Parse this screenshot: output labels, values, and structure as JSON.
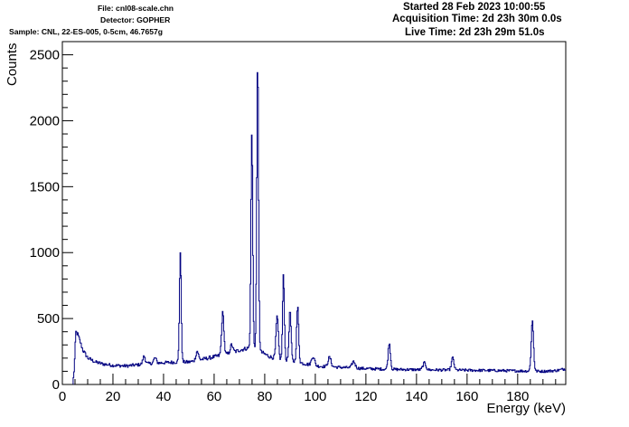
{
  "header": {
    "file": "File: cnl08-scale.chn",
    "detector": "Detector: GOPHER",
    "sample": "Sample: CNL, 22-ES-005, 0-5cm, 46.7657g",
    "started": "Started 28 Feb 2023 10:00:55",
    "acquisition_time": "Acquisition Time: 2d 23h 30m 0.0s",
    "live_time": "Live Time: 2d 23h 29m 51.0s"
  },
  "colors": {
    "line": "#000080",
    "axis": "#000000",
    "background": "#ffffff"
  },
  "chart_data": {
    "type": "line",
    "style": "histogram-step",
    "xlabel": "Energy (keV)",
    "ylabel": "Counts",
    "xlim": [
      0,
      199
    ],
    "ylim": [
      0,
      2600
    ],
    "x_ticks": [
      0,
      20,
      40,
      60,
      80,
      100,
      120,
      140,
      160,
      180
    ],
    "y_ticks": [
      0,
      500,
      1000,
      1500,
      2000,
      2500
    ],
    "grid": false,
    "legend": "none",
    "baseline": [
      [
        0.5,
        0
      ],
      [
        4,
        0
      ],
      [
        4.6,
        120
      ],
      [
        5.2,
        400
      ],
      [
        6,
        380
      ],
      [
        7,
        320
      ],
      [
        8,
        260
      ],
      [
        10,
        200
      ],
      [
        13,
        170
      ],
      [
        16,
        155
      ],
      [
        20,
        145
      ],
      [
        25,
        140
      ],
      [
        30,
        150
      ],
      [
        35,
        160
      ],
      [
        40,
        165
      ],
      [
        45,
        170
      ],
      [
        50,
        170
      ],
      [
        55,
        190
      ],
      [
        60,
        210
      ],
      [
        65,
        230
      ],
      [
        70,
        260
      ],
      [
        74,
        280
      ],
      [
        78,
        250
      ],
      [
        82,
        210
      ],
      [
        86,
        190
      ],
      [
        90,
        180
      ],
      [
        95,
        160
      ],
      [
        100,
        140
      ],
      [
        110,
        130
      ],
      [
        120,
        120
      ],
      [
        130,
        115
      ],
      [
        140,
        112
      ],
      [
        150,
        110
      ],
      [
        160,
        108
      ],
      [
        170,
        106
      ],
      [
        180,
        103
      ],
      [
        190,
        100
      ],
      [
        195,
        105
      ],
      [
        199,
        120
      ]
    ],
    "peaks": [
      {
        "x": 32.2,
        "height": 60,
        "width": 0.5
      },
      {
        "x": 36.5,
        "height": 40,
        "width": 0.5
      },
      {
        "x": 46.5,
        "height": 830,
        "width": 0.35
      },
      {
        "x": 53.2,
        "height": 70,
        "width": 0.5
      },
      {
        "x": 63.3,
        "height": 320,
        "width": 0.45
      },
      {
        "x": 66.8,
        "height": 60,
        "width": 0.5
      },
      {
        "x": 74.8,
        "height": 1630,
        "width": 0.35
      },
      {
        "x": 77.1,
        "height": 2180,
        "width": 0.35
      },
      {
        "x": 84.8,
        "height": 320,
        "width": 0.45
      },
      {
        "x": 87.3,
        "height": 640,
        "width": 0.35
      },
      {
        "x": 89.9,
        "height": 380,
        "width": 0.4
      },
      {
        "x": 92.9,
        "height": 420,
        "width": 0.4
      },
      {
        "x": 99.0,
        "height": 70,
        "width": 0.6
      },
      {
        "x": 105.5,
        "height": 70,
        "width": 0.6
      },
      {
        "x": 115.0,
        "height": 50,
        "width": 0.6
      },
      {
        "x": 129.1,
        "height": 200,
        "width": 0.45
      },
      {
        "x": 143.0,
        "height": 50,
        "width": 0.6
      },
      {
        "x": 154.2,
        "height": 90,
        "width": 0.5
      },
      {
        "x": 185.7,
        "height": 380,
        "width": 0.45
      }
    ]
  }
}
